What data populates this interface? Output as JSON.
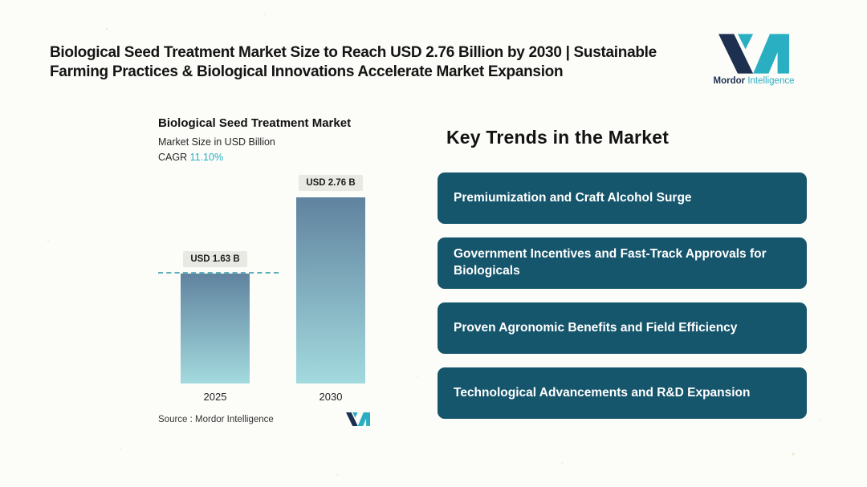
{
  "page": {
    "headline_line1": "Biological Seed Treatment Market Size to Reach USD 2.76 Billion by 2030 | Sustainable",
    "headline_line2": "Farming Practices & Biological Innovations Accelerate Market Expansion"
  },
  "brand": {
    "name_primary": "Mordor",
    "name_secondary": "Intelligence"
  },
  "chart_data": {
    "type": "bar",
    "title": "Biological Seed Treatment Market",
    "subtitle": "Market Size in USD Billion",
    "cagr_label": "CAGR",
    "cagr_value": "11.10%",
    "categories": [
      "2025",
      "2030"
    ],
    "values": [
      1.63,
      2.76
    ],
    "data_labels": [
      "USD 1.63 B",
      "USD 2.76 B"
    ],
    "ylabel": "Market Size in USD Billion",
    "ylim": [
      0,
      2.76
    ],
    "reference_line": 1.63,
    "grid": false,
    "legend": "none",
    "source": "Source :  Mordor Intelligence"
  },
  "key_trends": {
    "heading": "Key Trends in the Market",
    "items": [
      "Premiumization and Craft Alcohol Surge",
      "Government Incentives and Fast-Track Approvals for Biologicals",
      "Proven Agronomic Benefits and Field Efficiency",
      "Technological Advancements and R&D Expansion"
    ]
  },
  "colors": {
    "accent_teal": "#2aaec2",
    "brand_navy": "#1d3050",
    "trend_box_bg": "#16566c",
    "bar_gradient_top": "#60839f",
    "bar_gradient_bottom": "#a3dade",
    "value_chip_bg": "#e9e9e4",
    "dashed_line": "#5fb0ba",
    "background": "#fcfcf9"
  }
}
